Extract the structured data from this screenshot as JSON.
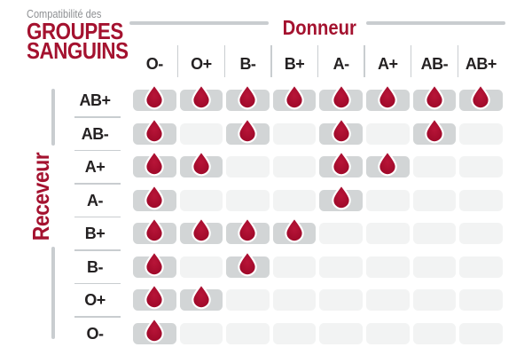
{
  "title": {
    "kicker": "Compatibilité des",
    "line1": "GROUPES",
    "line2": "SANGUINS"
  },
  "chart_data": {
    "type": "table",
    "title": "Compatibilité des groupes sanguins",
    "columns_label": "Donneur",
    "rows_label": "Receveur",
    "columns": [
      "O-",
      "O+",
      "B-",
      "B+",
      "A-",
      "A+",
      "AB-",
      "AB+"
    ],
    "rows": [
      "AB+",
      "AB-",
      "A+",
      "A-",
      "B+",
      "B-",
      "O+",
      "O-"
    ],
    "matrix": [
      [
        1,
        1,
        1,
        1,
        1,
        1,
        1,
        1
      ],
      [
        1,
        0,
        1,
        0,
        1,
        0,
        1,
        0
      ],
      [
        1,
        1,
        0,
        0,
        1,
        1,
        0,
        0
      ],
      [
        1,
        0,
        0,
        0,
        1,
        0,
        0,
        0
      ],
      [
        1,
        1,
        1,
        1,
        0,
        0,
        0,
        0
      ],
      [
        1,
        0,
        1,
        0,
        0,
        0,
        0,
        0
      ],
      [
        1,
        1,
        0,
        0,
        0,
        0,
        0,
        0
      ],
      [
        1,
        0,
        0,
        0,
        0,
        0,
        0,
        0
      ]
    ],
    "legend_position": "none",
    "grid": "rounded-cells"
  },
  "icons": {
    "compatible_marker": "blood-drop-icon"
  },
  "colors": {
    "accent_red": "#A4122F",
    "drop_gradient_inner": "#B81538",
    "drop_gradient_outer": "#9B0727",
    "cell_compatible": "#D2D5D6",
    "cell_incompatible": "#F2F3F3",
    "divider_gray": "#C9CDD0",
    "label_text": "#242122",
    "kicker_gray": "#8E9093"
  }
}
